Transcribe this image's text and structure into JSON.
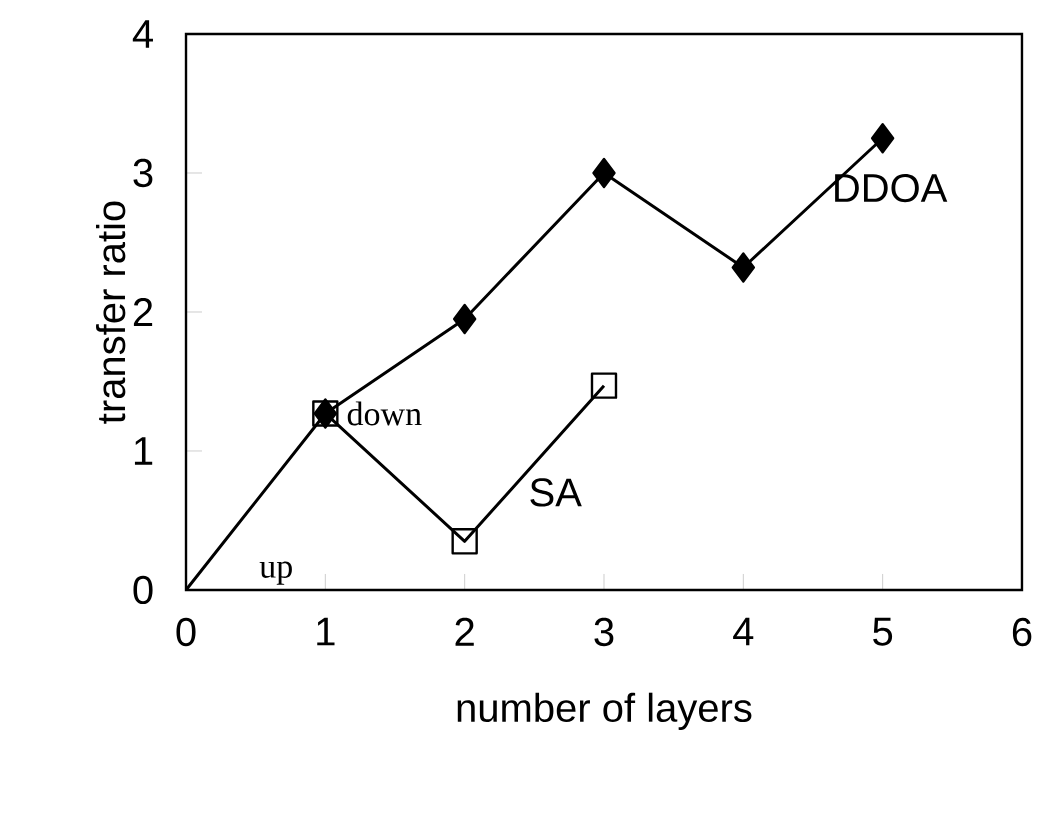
{
  "chart_data": {
    "type": "line",
    "xlabel": "number of layers",
    "ylabel": "transfer ratio",
    "xlim": [
      0,
      6
    ],
    "ylim": [
      0,
      4
    ],
    "xticks": [
      0,
      1,
      2,
      3,
      4,
      5,
      6
    ],
    "yticks": [
      0,
      1,
      2,
      3,
      4
    ],
    "series": [
      {
        "name": "DDOA",
        "color": "#000000",
        "marker": "diamond",
        "x": [
          0,
          1,
          2,
          3,
          4,
          5
        ],
        "values": [
          0,
          1.27,
          1.95,
          3.0,
          2.32,
          3.25
        ]
      },
      {
        "name": "SA",
        "color": "#000000",
        "marker": "square",
        "x": [
          1,
          2,
          3
        ],
        "values": [
          1.27,
          0.35,
          1.47
        ]
      }
    ],
    "annotations": [
      "up",
      "down"
    ]
  }
}
